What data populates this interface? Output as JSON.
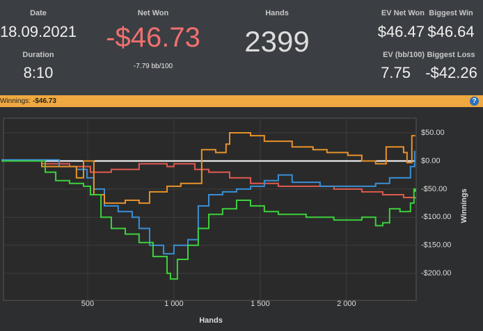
{
  "header": {
    "date_label": "Date",
    "date": "18.09.2021",
    "duration_label": "Duration",
    "duration": "8:10",
    "net_won_label": "Net Won",
    "net_won": "-$46.73",
    "net_won_bb": "-7.79 bb/100",
    "hands_label": "Hands",
    "hands": "2399",
    "ev_net_won_label": "EV Net Won",
    "ev_net_won": "$46.47",
    "biggest_win_label": "Biggest Win",
    "biggest_win": "$46.64",
    "ev_bb_label": "EV (bb/100)",
    "ev_bb": "7.75",
    "biggest_loss_label": "Biggest Loss",
    "biggest_loss": "-$42.26"
  },
  "bar": {
    "label": "Winnings:",
    "value": "-$46.73",
    "help": "?"
  },
  "chart_data": {
    "type": "line",
    "step": true,
    "x_label": "Hands",
    "y_label": "Winnings",
    "xlim": [
      0,
      2400
    ],
    "ylim": [
      -248,
      76
    ],
    "xticks": [
      500,
      {
        "value": 1000,
        "label": "1 000"
      },
      {
        "value": 1500,
        "label": "1 500"
      },
      {
        "value": 2000,
        "label": "2 000"
      }
    ],
    "yticks": [
      {
        "value": 50,
        "label": "$50.00"
      },
      {
        "value": 0,
        "label": "$0.00"
      },
      {
        "value": -50,
        "label": "-$50.00"
      },
      {
        "value": -100,
        "label": "-$100.00"
      },
      {
        "value": -150,
        "label": "-$150.00"
      },
      {
        "value": -200,
        "label": "-$200.00"
      }
    ],
    "zero_line": true,
    "grid": true,
    "series": [
      {
        "color": "#e05a4e",
        "x": [
          0,
          234,
          395,
          516,
          637,
          798,
          960,
          1000,
          1121,
          1202,
          1323,
          1444,
          1605,
          1766,
          1927,
          2089,
          2210,
          2331,
          2399
        ],
        "values": [
          0,
          -5,
          -10,
          -20,
          -15,
          -5,
          -10,
          -5,
          -15,
          -20,
          -30,
          -40,
          -45,
          -45,
          -50,
          -55,
          -60,
          -65,
          -67
        ]
      },
      {
        "color": "#3a8fd6",
        "x": [
          0,
          335,
          435,
          496,
          536,
          597,
          677,
          758,
          798,
          859,
          940,
          1000,
          1081,
          1141,
          1202,
          1282,
          1363,
          1444,
          1524,
          1605,
          1685,
          1847,
          2008,
          2169,
          2250,
          2351,
          2371,
          2395
        ],
        "values": [
          2,
          -10,
          -15,
          -30,
          -50,
          -80,
          -90,
          -100,
          -120,
          -150,
          -165,
          -150,
          -140,
          -80,
          -60,
          -55,
          -50,
          -45,
          -35,
          -25,
          -38,
          -45,
          -45,
          -40,
          -30,
          -30,
          -10,
          18
        ]
      },
      {
        "color": "#e8922a",
        "x": [
          0,
          234,
          435,
          476,
          536,
          597,
          718,
          798,
          859,
          960,
          1040,
          1121,
          1161,
          1242,
          1302,
          1323,
          1444,
          1524,
          1685,
          1806,
          1887,
          2008,
          2089,
          2169,
          2230,
          2331,
          2351,
          2379,
          2399
        ],
        "values": [
          0,
          -10,
          -30,
          0,
          -60,
          -75,
          -70,
          -75,
          -55,
          -45,
          -40,
          -40,
          20,
          15,
          30,
          50,
          45,
          35,
          25,
          20,
          15,
          10,
          0,
          -5,
          25,
          15,
          -3,
          45,
          45
        ]
      },
      {
        "color": "#3cd23c",
        "x": [
          0,
          234,
          254,
          315,
          395,
          476,
          516,
          577,
          637,
          718,
          798,
          879,
          960,
          980,
          1020,
          1081,
          1141,
          1202,
          1282,
          1363,
          1444,
          1524,
          1605,
          1766,
          1927,
          2089,
          2169,
          2210,
          2250,
          2310,
          2371,
          2391,
          2399
        ],
        "values": [
          0,
          0,
          -20,
          -35,
          -40,
          -45,
          -60,
          -100,
          -120,
          -130,
          -145,
          -170,
          -200,
          -210,
          -175,
          -150,
          -120,
          -95,
          -85,
          -70,
          -80,
          -90,
          -95,
          -100,
          -105,
          -100,
          -115,
          -110,
          -85,
          -90,
          -75,
          -50,
          -55
        ]
      }
    ]
  }
}
